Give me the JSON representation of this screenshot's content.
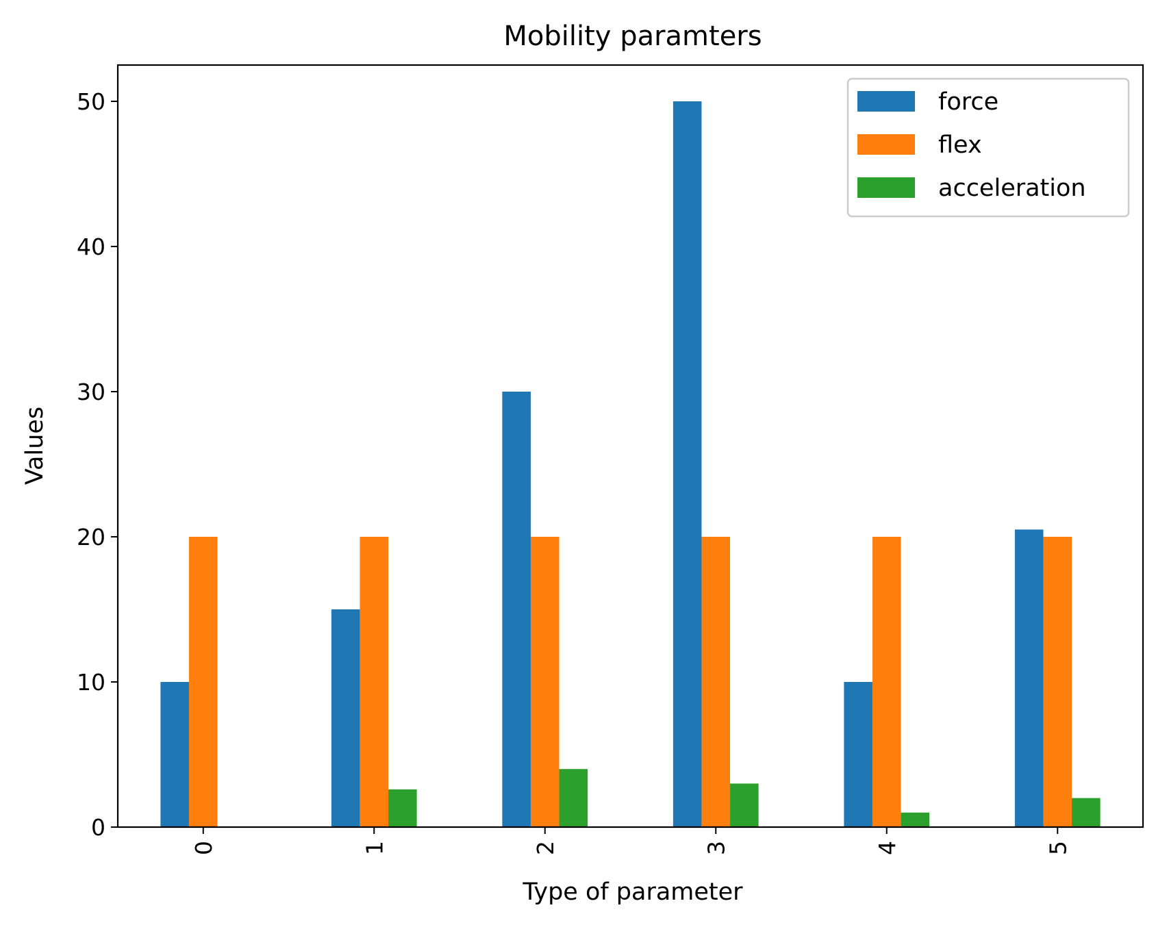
{
  "chart_data": {
    "type": "bar",
    "title": "Mobility paramters",
    "xlabel": "Type of parameter",
    "ylabel": "Values",
    "categories": [
      "0",
      "1",
      "2",
      "3",
      "4",
      "5"
    ],
    "series": [
      {
        "name": "force",
        "color": "#1f77b4",
        "values": [
          10,
          15,
          30,
          50,
          10,
          20.5
        ]
      },
      {
        "name": "flex",
        "color": "#ff7f0e",
        "values": [
          20,
          20,
          20,
          20,
          20,
          20
        ]
      },
      {
        "name": "acceleration",
        "color": "#2ca02c",
        "values": [
          0,
          2.6,
          4,
          3,
          1,
          2
        ]
      }
    ],
    "ylim": [
      0,
      52.5
    ],
    "yticks": [
      0,
      10,
      20,
      30,
      40,
      50
    ],
    "grid": false,
    "legend": "top-right",
    "xtick_rotation": "vertical"
  }
}
